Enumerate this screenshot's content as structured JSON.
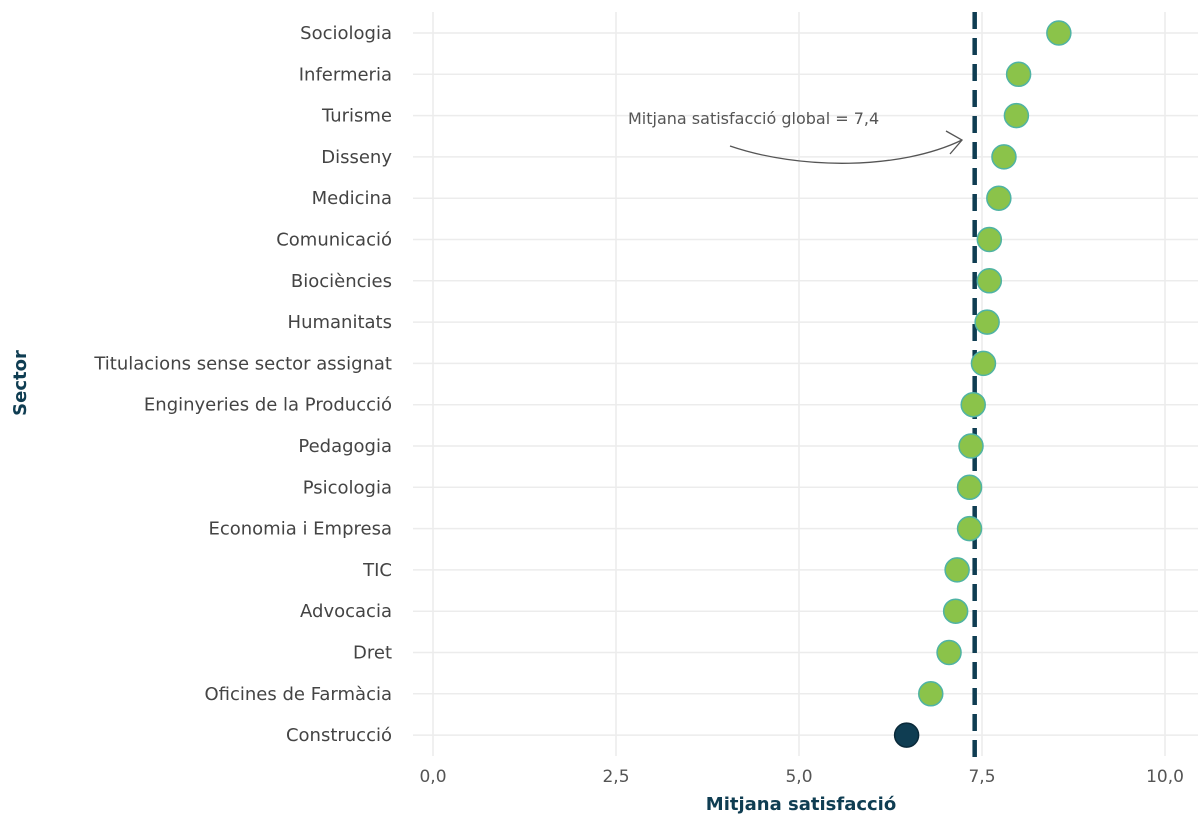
{
  "chart_data": {
    "type": "scatter",
    "title": "",
    "xlabel": "Mitjana satisfacció",
    "ylabel": "Sector",
    "xlim": [
      0,
      10
    ],
    "x_ticks": [
      0,
      2.5,
      5,
      7.5,
      10
    ],
    "x_tick_labels": [
      "0,0",
      "2,5",
      "5,0",
      "7,5",
      "10,0"
    ],
    "categories": [
      "Sociologia",
      "Infermeria",
      "Turisme",
      "Disseny",
      "Medicina",
      "Comunicació",
      "Biociències",
      "Humanitats",
      "Titulacions sense sector assignat",
      "Enginyeries de la Producció",
      "Pedagogia",
      "Psicologia",
      "Economia i Empresa",
      "TIC",
      "Advocacia",
      "Dret",
      "Oficines de Farmàcia",
      "Construcció"
    ],
    "values": [
      8.55,
      8.0,
      7.97,
      7.8,
      7.73,
      7.6,
      7.6,
      7.57,
      7.52,
      7.38,
      7.35,
      7.33,
      7.33,
      7.16,
      7.14,
      7.05,
      6.8,
      6.47
    ],
    "reference_line": {
      "value": 7.4,
      "style": "dashed",
      "color": "#0f3d52"
    },
    "annotation": {
      "text": "Mitjana satisfacció global = 7,4"
    },
    "colors": {
      "above_point": "#8bc34a",
      "above_point_stroke": "#4fb3a4",
      "below_point": "#0f3d52",
      "reference_line": "#0f3d52",
      "axis_title": "#0f3d52"
    },
    "grid": true,
    "legend": "none"
  }
}
